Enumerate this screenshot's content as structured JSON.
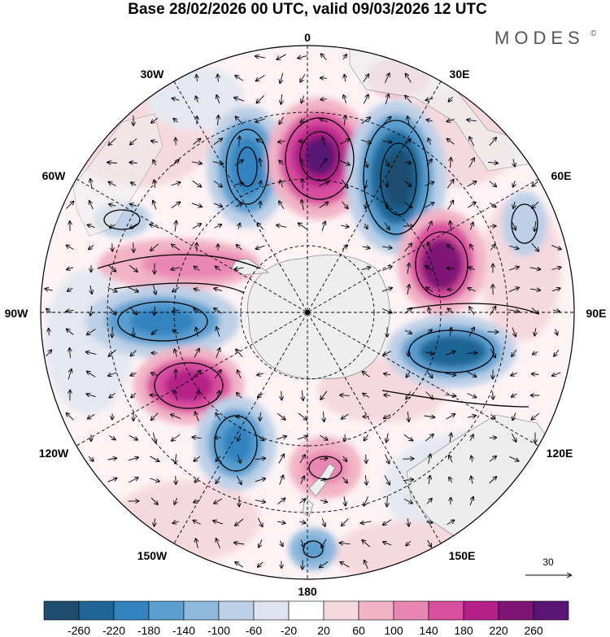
{
  "title": "Base 28/02/2026 00 UTC, valid 09/03/2026 12 UTC",
  "logo": {
    "text": "MODES",
    "mark": "©"
  },
  "longitude_labels": {
    "top": "0",
    "top_left": "30W",
    "top_right": "30E",
    "left_upper": "60W",
    "right_upper": "60E",
    "left": "90W",
    "right": "90E",
    "left_lower": "120W",
    "right_lower": "120E",
    "bottom_left": "150W",
    "bottom_right": "150E",
    "bottom": "180"
  },
  "reference_vector": {
    "label": "30"
  },
  "colorbar": {
    "ticks": [
      "-260",
      "-220",
      "-180",
      "-140",
      "-100",
      "-60",
      "-20",
      "20",
      "60",
      "100",
      "140",
      "180",
      "220",
      "260"
    ],
    "colors": [
      "#1d4e6f",
      "#1f6696",
      "#3283bf",
      "#5a9fd0",
      "#8fb9dd",
      "#bdd0e7",
      "#dfe3ef",
      "#ffffff",
      "#f6d9df",
      "#f2b3c6",
      "#ea86b4",
      "#d94f9f",
      "#b42088",
      "#7f1575",
      "#5a1473"
    ]
  },
  "colors": {
    "land": "#eeeeee",
    "coast": "#8c8c8c",
    "grid": "#000000"
  }
}
